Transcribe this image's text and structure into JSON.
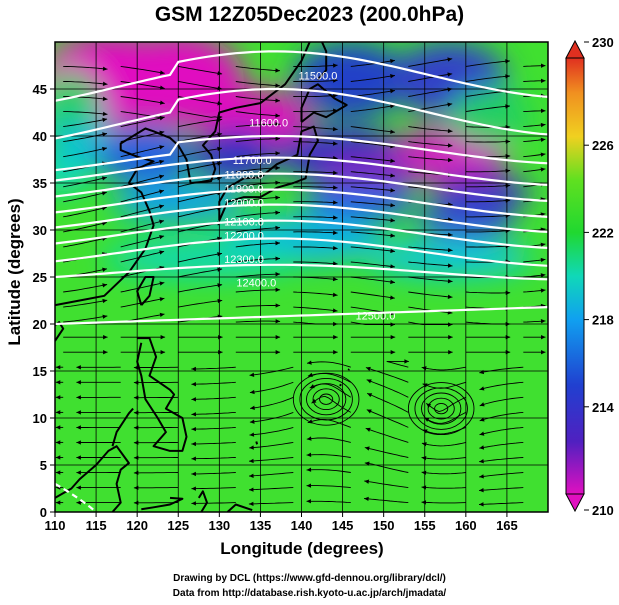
{
  "title": "GSM 12Z05Dec2023 (200.0hPa)",
  "xlabel": "Longitude (degrees)",
  "ylabel": "Latitude  (degrees)",
  "credits": {
    "line1": "Drawing by DCL (https://www.gfd-dennou.org/library/dcl/)",
    "line2": "Data from http://database.rish.kyoto-u.ac.jp/arch/jmadata/"
  },
  "chart_data": {
    "type": "heatmap",
    "title": "GSM 12Z05Dec2023 (200.0hPa)",
    "xlabel": "Longitude (degrees)",
    "ylabel": "Latitude  (degrees)",
    "xlim": [
      110,
      170
    ],
    "ylim": [
      0,
      50
    ],
    "x_ticks": [
      "110",
      "115",
      "120",
      "125",
      "130",
      "135",
      "140",
      "145",
      "150",
      "155",
      "160",
      "165"
    ],
    "y_ticks": [
      "0",
      "5",
      "10",
      "15",
      "20",
      "25",
      "30",
      "35",
      "40",
      "45"
    ],
    "colorbar": {
      "min": 210,
      "max": 230,
      "ticks": [
        "210",
        "214",
        "218",
        "222",
        "226",
        "230"
      ],
      "colors": [
        "#e010c0",
        "#3030c8",
        "#1090f0",
        "#10d8c8",
        "#20d830",
        "#40e820",
        "#f0d020",
        "#f09020",
        "#e03020"
      ]
    },
    "height_contours": [
      {
        "label": "11500.0",
        "lon": 142,
        "lat": 46
      },
      {
        "label": "11600.0",
        "lon": 136,
        "lat": 41
      },
      {
        "label": "11700.0",
        "lon": 134,
        "lat": 37
      },
      {
        "label": "11800.0",
        "lon": 133,
        "lat": 35.5
      },
      {
        "label": "11900.0",
        "lon": 133,
        "lat": 34
      },
      {
        "label": "12000.0",
        "lon": 133,
        "lat": 32.5
      },
      {
        "label": "12100.0",
        "lon": 133,
        "lat": 30.5
      },
      {
        "label": "12200.0",
        "lon": 133,
        "lat": 29
      },
      {
        "label": "12300.0",
        "lon": 133,
        "lat": 26.5
      },
      {
        "label": "12400.0",
        "lon": 134.5,
        "lat": 24
      },
      {
        "label": "12500.0",
        "lon": 149,
        "lat": 20.5
      }
    ]
  }
}
